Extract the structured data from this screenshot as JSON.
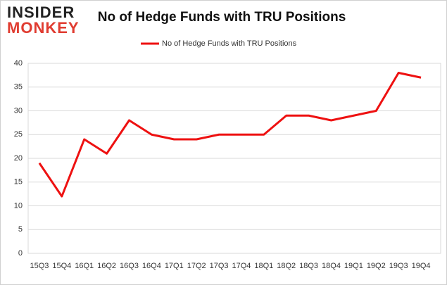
{
  "logo": {
    "top": "INSIDER",
    "bottom": "MONKEY"
  },
  "chart_data": {
    "type": "line",
    "title": "No of Hedge Funds with TRU Positions",
    "categories": [
      "15Q3",
      "15Q4",
      "16Q1",
      "16Q2",
      "16Q3",
      "16Q4",
      "17Q1",
      "17Q2",
      "17Q3",
      "17Q4",
      "18Q1",
      "18Q2",
      "18Q3",
      "18Q4",
      "19Q1",
      "19Q2",
      "19Q3",
      "19Q4"
    ],
    "series": [
      {
        "name": "No of Hedge Funds with TRU Positions",
        "color": "#ee1111",
        "values": [
          19,
          12,
          24,
          21,
          28,
          25,
          24,
          24,
          25,
          25,
          25,
          29,
          29,
          28,
          29,
          30,
          38,
          37
        ]
      }
    ],
    "ylim": [
      0,
      40
    ],
    "yticks": [
      0,
      5,
      10,
      15,
      20,
      25,
      30,
      35,
      40
    ],
    "grid": true,
    "legend": "top"
  }
}
